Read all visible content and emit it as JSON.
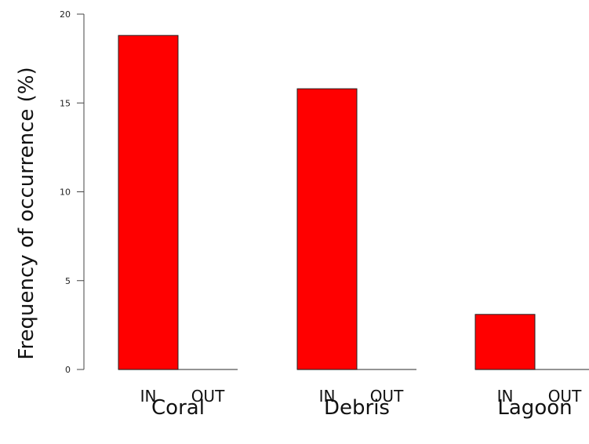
{
  "chart_data": {
    "type": "bar",
    "title": "",
    "xlabel": "",
    "ylabel": "Frequency of occurrence (%)",
    "ylim": [
      0,
      20
    ],
    "yticks": [
      0,
      5,
      10,
      15,
      20
    ],
    "grid": false,
    "groups": [
      {
        "name": "Coral",
        "bars": [
          {
            "label": "IN",
            "value": 18.8
          },
          {
            "label": "OUT",
            "value": 0
          }
        ]
      },
      {
        "name": "Debris",
        "bars": [
          {
            "label": "IN",
            "value": 15.8
          },
          {
            "label": "OUT",
            "value": 0
          }
        ]
      },
      {
        "name": "Lagoon",
        "bars": [
          {
            "label": "IN",
            "value": 3.1
          },
          {
            "label": "OUT",
            "value": 0
          }
        ]
      }
    ],
    "bar_color": "#ff0000"
  }
}
